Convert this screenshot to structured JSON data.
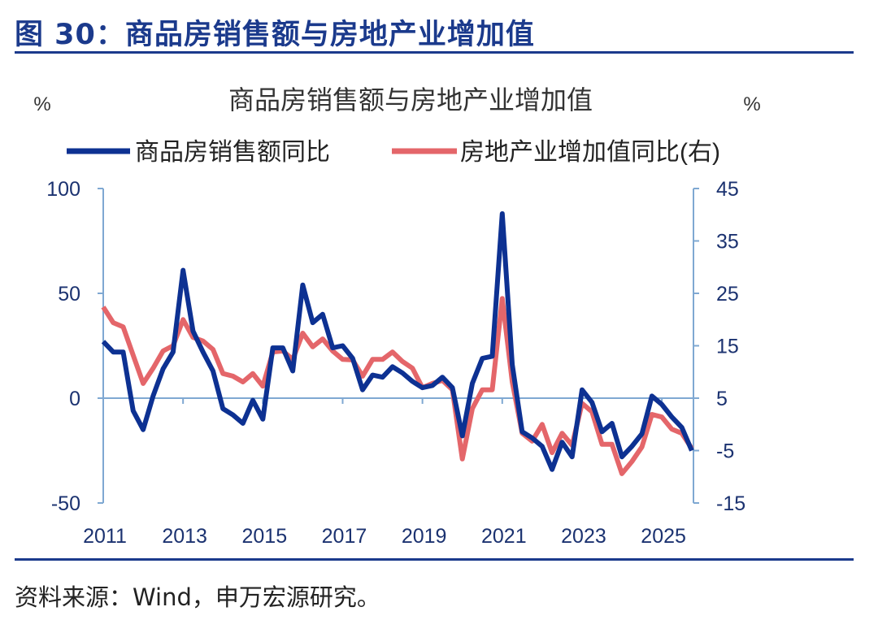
{
  "figure_title": "图 30：商品房销售额与房地产业增加值",
  "source": "资料来源：Wind，申万宏源研究。",
  "colors": {
    "header": "#1b3a8c",
    "series_sales": "#0d3192",
    "series_value_added": "#e4666a",
    "axis": "#7fa8d2"
  },
  "chart_data": {
    "type": "line",
    "title": "商品房销售额与房地产业增加值",
    "ylabel_left": "%",
    "ylabel_right": "%",
    "ylim_left": [
      -50,
      100
    ],
    "ylim_right": [
      -15,
      45
    ],
    "yticks_left": [
      "100",
      "50",
      "0",
      "-50"
    ],
    "yticks_right": [
      "45",
      "35",
      "25",
      "15",
      "5",
      "-5",
      "-15"
    ],
    "xticks": [
      "2011",
      "2013",
      "2015",
      "2017",
      "2019",
      "2021",
      "2023",
      "2025"
    ],
    "x_frequency": "quarterly",
    "x_start": "2011",
    "legend_position": "top",
    "grid": false,
    "series": [
      {
        "name": "商品房销售额同比",
        "axis": "left",
        "values": [
          27,
          22,
          22,
          -6,
          -15,
          1,
          14,
          22,
          61,
          32,
          22,
          13,
          -5,
          -8,
          -12,
          -1,
          -10,
          24,
          24,
          13,
          54,
          36,
          40,
          24,
          25,
          19,
          4,
          11,
          10,
          15,
          12,
          8,
          5,
          6,
          10,
          5,
          -18,
          7,
          19,
          20,
          88,
          16,
          -16,
          -19,
          -23,
          -34,
          -21,
          -28,
          4,
          -2,
          -16,
          -12,
          -28,
          -23,
          -17,
          1,
          -3,
          -9,
          -14,
          -25
        ]
      },
      {
        "name": "房地产业增加值同比(右)",
        "axis": "right",
        "values": [
          22.4,
          19.4,
          18.6,
          13.2,
          7.8,
          10.7,
          14,
          15,
          20,
          16.6,
          15.9,
          14.3,
          9.7,
          9.2,
          8.1,
          9.7,
          7.3,
          13.8,
          14,
          12.4,
          17.4,
          14.8,
          16.3,
          14,
          12.4,
          12.3,
          9.2,
          12.4,
          12.4,
          13.8,
          12,
          10.7,
          7,
          7.8,
          8.4,
          6.6,
          -6.6,
          3,
          6.6,
          6.6,
          24,
          8.1,
          -1.7,
          -3.2,
          0,
          -5.4,
          -1.7,
          -4,
          4,
          2.4,
          -3.8,
          -3.8,
          -9.4,
          -7.1,
          -4.3,
          1.9,
          1.4,
          -0.9,
          -1.7,
          -4.6
        ]
      }
    ]
  }
}
